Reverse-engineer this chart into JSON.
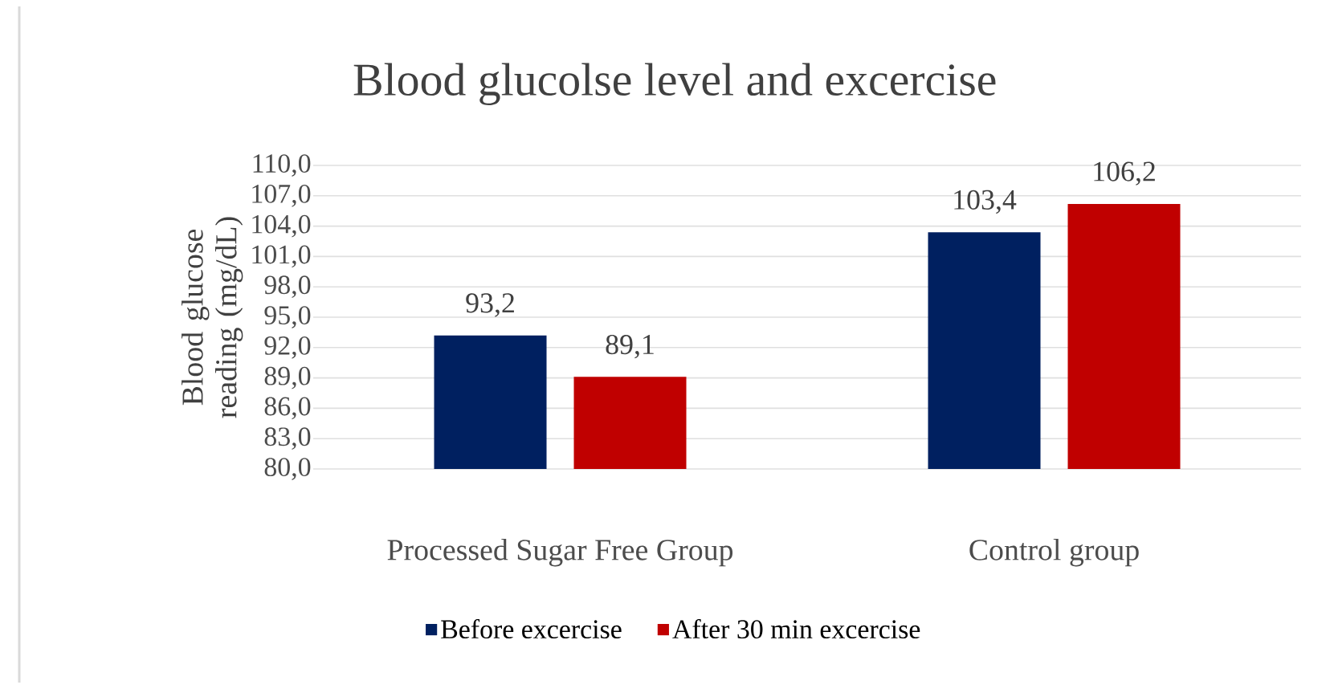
{
  "chart_data": {
    "type": "bar",
    "title": "Blood glucolse level and excercise",
    "ylabel": "Blood glucose reading (mg/dL)",
    "categories": [
      "Processed Sugar Free Group",
      "Control group"
    ],
    "series": [
      {
        "name": "Before excercise",
        "color": "#002060",
        "values": [
          93.2,
          103.4
        ],
        "value_labels": [
          "93,2",
          "103,4"
        ]
      },
      {
        "name": "After 30 min excercise",
        "color": "#c00000",
        "values": [
          89.1,
          106.2
        ],
        "value_labels": [
          "89,1",
          "106,2"
        ]
      }
    ],
    "ylim": [
      80,
      110
    ],
    "yticks": [
      {
        "value": 80,
        "label": "80,0"
      },
      {
        "value": 83,
        "label": "83,0"
      },
      {
        "value": 86,
        "label": "86,0"
      },
      {
        "value": 89,
        "label": "89,0"
      },
      {
        "value": 92,
        "label": "92,0"
      },
      {
        "value": 95,
        "label": "95,0"
      },
      {
        "value": 98,
        "label": "98,0"
      },
      {
        "value": 101,
        "label": "101,0"
      },
      {
        "value": 104,
        "label": "104,0"
      },
      {
        "value": 107,
        "label": "107,0"
      },
      {
        "value": 110,
        "label": "110,0"
      }
    ],
    "grid": "y",
    "legend": "bottom"
  }
}
